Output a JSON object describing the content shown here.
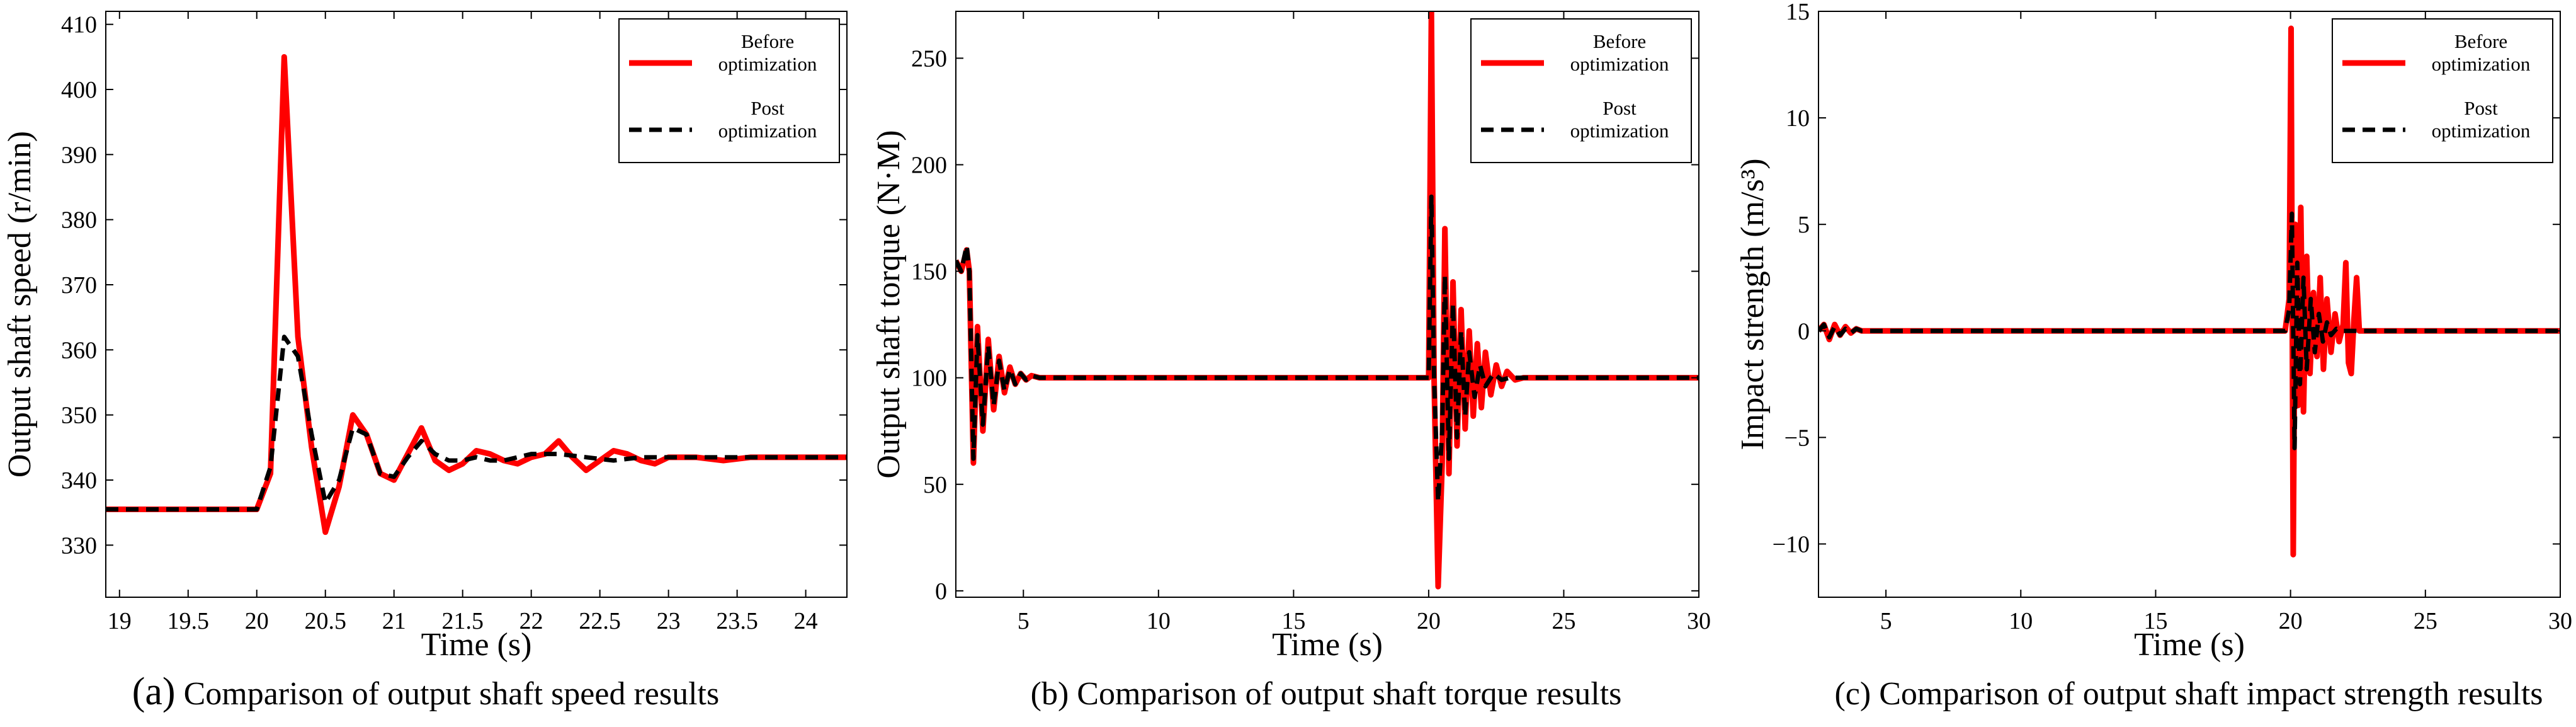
{
  "chart_data": [
    {
      "id": "a",
      "type": "line",
      "caption_tag": "(a)",
      "caption": "Comparison of output shaft speed results",
      "xlabel": "Time (s)",
      "ylabel": "Output shaft speed (r/min)",
      "xlim": [
        18.9,
        24.3
      ],
      "ylim": [
        322,
        412
      ],
      "xticks": [
        19,
        19.5,
        20,
        20.5,
        21,
        21.5,
        22,
        22.5,
        23,
        23.5,
        24
      ],
      "yticks": [
        330,
        340,
        350,
        360,
        370,
        380,
        390,
        400,
        410
      ],
      "legend": [
        {
          "line1": "Before",
          "line2": "optimization"
        },
        {
          "line1": "Post",
          "line2": "optimization"
        }
      ],
      "series": [
        {
          "name": "Before optimization",
          "color": "#ff0000",
          "style": "solid",
          "x": [
            18.9,
            19.9,
            20.0,
            20.1,
            20.2,
            20.3,
            20.4,
            20.5,
            20.6,
            20.7,
            20.8,
            20.9,
            21.0,
            21.1,
            21.2,
            21.3,
            21.4,
            21.5,
            21.6,
            21.7,
            21.8,
            21.9,
            22.0,
            22.1,
            22.2,
            22.3,
            22.4,
            22.5,
            22.6,
            22.7,
            22.8,
            22.9,
            23.0,
            23.2,
            23.4,
            23.6,
            23.8,
            24.0,
            24.3
          ],
          "y": [
            335.5,
            335.5,
            335.5,
            341,
            405,
            362,
            345,
            332,
            339,
            350,
            347,
            341,
            340,
            344,
            348,
            343,
            341.5,
            342.5,
            344.5,
            344,
            343,
            342.5,
            343.5,
            344,
            346,
            343.5,
            341.5,
            343,
            344.5,
            344,
            343,
            342.5,
            343.5,
            343.5,
            343,
            343.5,
            343.5,
            343.5,
            343.5
          ]
        },
        {
          "name": "Post optimization",
          "color": "#000000",
          "style": "dashed",
          "x": [
            18.9,
            19.9,
            20.0,
            20.1,
            20.2,
            20.3,
            20.4,
            20.5,
            20.6,
            20.7,
            20.8,
            20.9,
            21.0,
            21.1,
            21.2,
            21.3,
            21.4,
            21.5,
            21.6,
            21.7,
            21.8,
            21.9,
            22.0,
            22.2,
            22.4,
            22.6,
            22.8,
            23.0,
            23.2,
            23.4,
            23.6,
            23.8,
            24.0,
            24.3
          ],
          "y": [
            335.5,
            335.5,
            335.5,
            342,
            362,
            359,
            347,
            336.5,
            340,
            348,
            347,
            341,
            340.5,
            343.5,
            346,
            344,
            343,
            343,
            343.5,
            343,
            343,
            343.5,
            344,
            344,
            343.5,
            343,
            343.5,
            343.5,
            343.5,
            343.5,
            343.5,
            343.5,
            343.5,
            343.5
          ]
        }
      ]
    },
    {
      "id": "b",
      "type": "line",
      "caption_tag": "(b)",
      "caption": "Comparison of output shaft torque results",
      "xlabel": "Time (s)",
      "ylabel": "Output shaft torque (N·M)",
      "xlim": [
        2.5,
        30
      ],
      "ylim": [
        -3,
        272
      ],
      "xticks": [
        5,
        10,
        15,
        20,
        25,
        30
      ],
      "yticks": [
        0,
        50,
        100,
        150,
        200,
        250
      ],
      "legend": [
        {
          "line1": "Before",
          "line2": "optimization"
        },
        {
          "line1": "Post",
          "line2": "optimization"
        }
      ],
      "series": [
        {
          "name": "Before optimization",
          "color": "#ff0000",
          "style": "solid",
          "x": [
            2.5,
            2.7,
            2.9,
            3.0,
            3.15,
            3.3,
            3.5,
            3.7,
            3.9,
            4.1,
            4.3,
            4.5,
            4.7,
            4.9,
            5.1,
            5.3,
            5.6,
            6.0,
            20.0,
            20.1,
            20.2,
            20.35,
            20.5,
            20.6,
            20.75,
            20.9,
            21.05,
            21.2,
            21.35,
            21.5,
            21.65,
            21.8,
            21.95,
            22.1,
            22.3,
            22.5,
            22.7,
            22.9,
            23.2,
            23.5,
            30
          ],
          "y": [
            155,
            150,
            160,
            150,
            60,
            124,
            75,
            118,
            85,
            110,
            93,
            105,
            97,
            102,
            99,
            101,
            100,
            100,
            100,
            272,
            100,
            2,
            60,
            170,
            55,
            145,
            68,
            132,
            76,
            122,
            82,
            116,
            86,
            112,
            92,
            106,
            96,
            103,
            99,
            100,
            100
          ]
        },
        {
          "name": "Post optimization",
          "color": "#000000",
          "style": "dashed",
          "x": [
            2.5,
            2.7,
            2.9,
            3.0,
            3.15,
            3.3,
            3.5,
            3.7,
            3.9,
            4.1,
            4.3,
            4.5,
            4.7,
            4.9,
            5.1,
            5.3,
            5.6,
            6.0,
            20.0,
            20.1,
            20.2,
            20.35,
            20.5,
            20.6,
            20.75,
            20.9,
            21.05,
            21.2,
            21.35,
            21.5,
            21.7,
            21.9,
            22.1,
            22.4,
            22.7,
            23.0,
            30
          ],
          "y": [
            155,
            150,
            162,
            150,
            62,
            120,
            78,
            115,
            87,
            108,
            94,
            104,
            97,
            102,
            99,
            101,
            100,
            100,
            100,
            185,
            100,
            42,
            75,
            148,
            62,
            135,
            72,
            122,
            82,
            112,
            91,
            106,
            96,
            102,
            99,
            100,
            100
          ]
        }
      ]
    },
    {
      "id": "c",
      "type": "line",
      "caption_tag": "(c)",
      "caption": "Comparison of output shaft impact strength results",
      "xlabel": "Time (s)",
      "ylabel": "Impact strength (m/s³)",
      "xlim": [
        2.5,
        30
      ],
      "ylim": [
        -12.5,
        15
      ],
      "xticks": [
        5,
        10,
        15,
        20,
        25,
        30
      ],
      "yticks": [
        -10,
        -5,
        0,
        5,
        10,
        15
      ],
      "ytick_labels": [
        "−10",
        "−5",
        "0",
        "5",
        "10",
        "15"
      ],
      "legend": [
        {
          "line1": "Before",
          "line2": "optimization"
        },
        {
          "line1": "Post",
          "line2": "optimization"
        }
      ],
      "series": [
        {
          "name": "Before optimization",
          "color": "#ff0000",
          "style": "solid",
          "x": [
            2.5,
            2.7,
            2.9,
            3.1,
            3.3,
            3.5,
            3.7,
            3.9,
            4.1,
            4.5,
            19.8,
            19.95,
            20.02,
            20.1,
            20.18,
            20.28,
            20.38,
            20.48,
            20.6,
            20.72,
            20.85,
            20.98,
            21.1,
            21.22,
            21.35,
            21.5,
            21.65,
            21.8,
            21.95,
            22.05,
            22.15,
            22.25,
            22.35,
            22.45,
            22.55,
            22.7,
            30
          ],
          "y": [
            0,
            0.3,
            -0.4,
            0.3,
            -0.2,
            0.2,
            -0.1,
            0.1,
            0,
            0,
            0,
            1.5,
            14.2,
            -10.5,
            5,
            -3.5,
            5.8,
            -3.8,
            3.5,
            -2,
            1.8,
            -1.2,
            2.5,
            -1.8,
            1.5,
            -1,
            0.8,
            -0.5,
            0.3,
            3.2,
            -1.5,
            -2,
            0.5,
            2.5,
            0,
            0,
            0
          ]
        },
        {
          "name": "Post optimization",
          "color": "#000000",
          "style": "dashed",
          "x": [
            2.5,
            2.7,
            2.9,
            3.1,
            3.3,
            3.5,
            3.7,
            3.9,
            4.1,
            4.5,
            19.8,
            19.95,
            20.05,
            20.15,
            20.25,
            20.35,
            20.48,
            20.6,
            20.75,
            20.9,
            21.05,
            21.2,
            21.35,
            21.5,
            21.7,
            21.9,
            22.1,
            30
          ],
          "y": [
            0,
            0.3,
            -0.3,
            0.2,
            -0.2,
            0.1,
            -0.1,
            0.1,
            0,
            0,
            0,
            1,
            5.5,
            -5.5,
            3.2,
            -2.5,
            2.5,
            -1.8,
            1.5,
            -1,
            0.8,
            -0.5,
            0.4,
            -0.2,
            0.1,
            0,
            0,
            0
          ]
        }
      ]
    }
  ]
}
